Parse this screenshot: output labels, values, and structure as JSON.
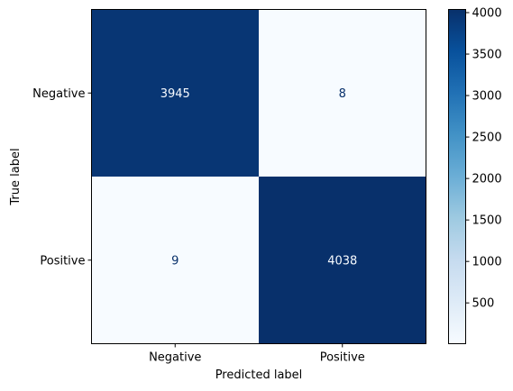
{
  "chart_data": {
    "type": "heatmap",
    "title": "",
    "xlabel": "Predicted label",
    "ylabel": "True label",
    "x_categories": [
      "Negative",
      "Positive"
    ],
    "y_categories": [
      "Negative",
      "Positive"
    ],
    "values": [
      [
        3945,
        8
      ],
      [
        9,
        4038
      ]
    ],
    "colormap": "Blues",
    "color_low": "#f7fbff",
    "color_high": "#08306b",
    "text_color_dark_cell": "#f7fbff",
    "text_color_light_cell": "#08306b",
    "colorbar": {
      "range": [
        8,
        4038
      ],
      "ticks": [
        500,
        1000,
        1500,
        2000,
        2500,
        3000,
        3500,
        4000
      ],
      "tick_labels": [
        "500",
        "1000",
        "1500",
        "2000",
        "2500",
        "3000",
        "3500",
        "4000"
      ]
    },
    "grid": false
  }
}
